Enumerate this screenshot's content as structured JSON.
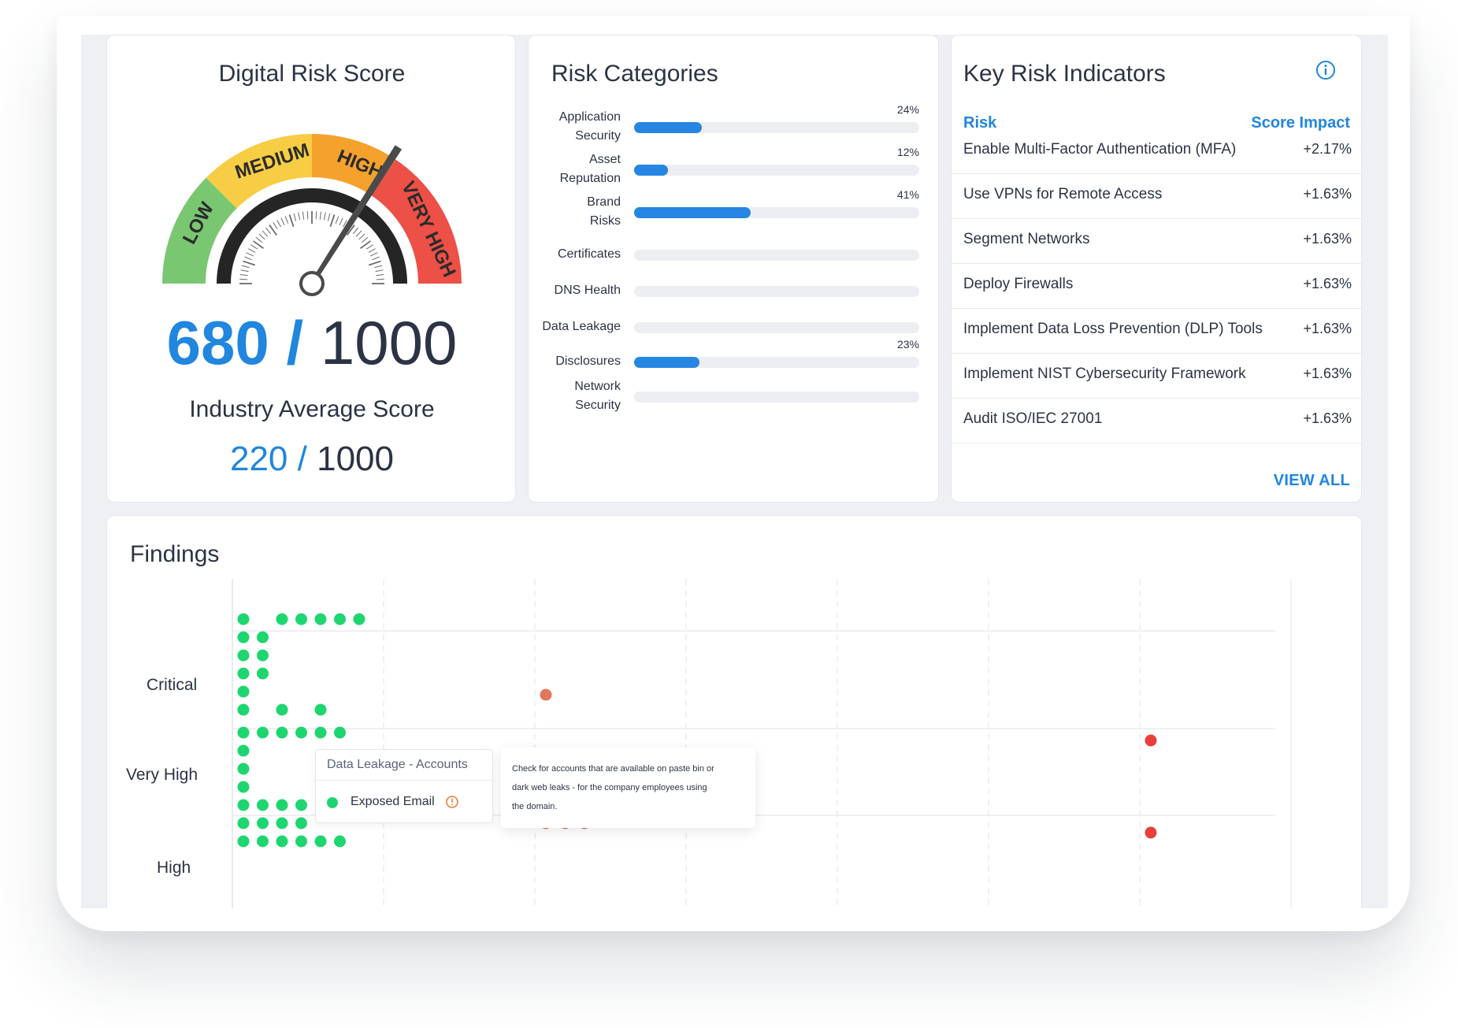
{
  "score_card": {
    "title": "Digital Risk Score",
    "gauge_bands": [
      "LOW",
      "MEDIUM",
      "HIGH",
      "VERY HIGH"
    ],
    "band_colors": [
      "#7ac772",
      "#f7cd45",
      "#f5a22d",
      "#ec5046"
    ],
    "score": "680",
    "separator": "/",
    "max": "1000",
    "score_fraction": 0.68,
    "industry_label": "Industry Average Score",
    "industry_score": "220",
    "industry_max": "1000"
  },
  "categories": {
    "title": "Risk Categories",
    "items": [
      {
        "label_lines": [
          "Application",
          "Security"
        ],
        "value": 24,
        "pct_label": "24%"
      },
      {
        "label_lines": [
          "Asset",
          "Reputation"
        ],
        "value": 12,
        "pct_label": "12%"
      },
      {
        "label_lines": [
          "Brand",
          "Risks"
        ],
        "value": 41,
        "pct_label": "41%"
      },
      {
        "label_lines": [
          "Certificates"
        ],
        "value": 0,
        "pct_label": ""
      },
      {
        "label_lines": [
          "DNS Health"
        ],
        "value": 0,
        "pct_label": ""
      },
      {
        "label_lines": [
          "Data Leakage"
        ],
        "value": 0,
        "pct_label": ""
      },
      {
        "label_lines": [
          "Disclosures"
        ],
        "value": 23,
        "pct_label": "23%"
      },
      {
        "label_lines": [
          "Network",
          "Security"
        ],
        "value": 0,
        "pct_label": ""
      }
    ]
  },
  "kri": {
    "title": "Key Risk Indicators",
    "icon": "info-icon",
    "col_risk": "Risk",
    "col_impact": "Score Impact",
    "rows": [
      {
        "name": "Enable Multi-Factor Authentication (MFA)",
        "impact": "+2.17%"
      },
      {
        "name": "Use VPNs for Remote Access",
        "impact": "+1.63%"
      },
      {
        "name": "Segment Networks",
        "impact": "+1.63%"
      },
      {
        "name": "Deploy Firewalls",
        "impact": "+1.63%"
      },
      {
        "name": "Implement Data Loss Prevention (DLP) Tools",
        "impact": "+1.63%"
      },
      {
        "name": "Implement NIST Cybersecurity Framework",
        "impact": "+1.63%"
      },
      {
        "name": "Audit ISO/IEC 27001",
        "impact": "+1.63%"
      }
    ],
    "view_all": "VIEW ALL"
  },
  "findings": {
    "title": "Findings",
    "tooltip": {
      "title": "Data Leakage - Accounts",
      "item": "Exposed Email",
      "description_lines": [
        "Check for accounts that are available on paste bin or",
        "dark web leaks - for the company employees using",
        "the domain."
      ]
    },
    "chart_data": {
      "type": "scatter",
      "y_categories": [
        "Critical",
        "Very High",
        "High"
      ],
      "x_columns": 7,
      "colors": {
        "low": "#1ed66f",
        "mid": "#e2775c",
        "high": "#ea3e3a"
      },
      "groups": [
        {
          "band": "Critical",
          "column": 1,
          "color": "low",
          "rows": [
            [
              1,
              3,
              4,
              5,
              6,
              7
            ],
            [
              1,
              2
            ],
            [
              1,
              2
            ],
            [
              1,
              2
            ],
            [
              1
            ],
            [
              1,
              3,
              5
            ]
          ]
        },
        {
          "band": "Critical",
          "column": 3,
          "color": "mid",
          "rows": [
            [
              1
            ]
          ]
        },
        {
          "band": "Very High",
          "column": 1,
          "color": "low",
          "rows": [
            [
              1,
              2,
              3,
              4,
              5,
              6
            ],
            [
              1
            ],
            [
              1
            ],
            [
              1
            ],
            [
              1,
              2,
              3,
              4
            ]
          ]
        },
        {
          "band": "Very High",
          "column": 7,
          "color": "high",
          "rows": [
            [
              1
            ]
          ]
        },
        {
          "band": "High",
          "column": 1,
          "color": "low",
          "rows": [
            [
              1,
              2,
              3,
              4
            ],
            [
              1,
              2,
              3,
              4,
              5,
              6
            ]
          ]
        },
        {
          "band": "High",
          "column": 3,
          "color": "mid",
          "rows": [
            [
              1,
              2,
              3
            ]
          ]
        },
        {
          "band": "High",
          "column": 7,
          "color": "high",
          "rows": [
            [
              1
            ]
          ]
        }
      ]
    }
  }
}
